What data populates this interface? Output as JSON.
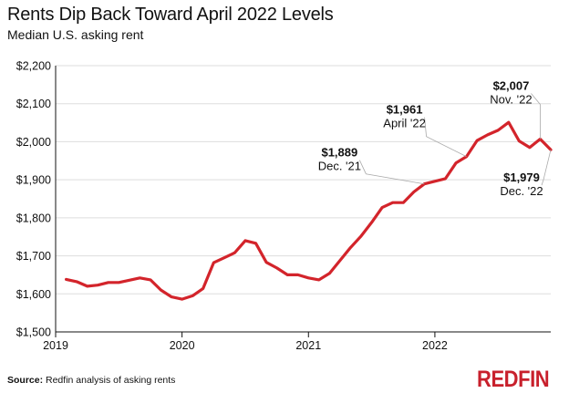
{
  "chart_data": {
    "type": "line",
    "title": "Rents Dip Back Toward April 2022 Levels",
    "subtitle": "Median U.S. asking rent",
    "xlabel": "",
    "ylabel": "",
    "ylim": [
      1500,
      2200
    ],
    "xlim": [
      "2019-01",
      "2022-12"
    ],
    "y_ticks": [
      "$1,500",
      "$1,600",
      "$1,700",
      "$1,800",
      "$1,900",
      "$2,000",
      "$2,100",
      "$2,200"
    ],
    "y_tick_values": [
      1500,
      1600,
      1700,
      1800,
      1900,
      2000,
      2100,
      2200
    ],
    "x_ticks": [
      "2019",
      "2020",
      "2021",
      "2022"
    ],
    "x_tick_values": [
      "2019-01",
      "2020-01",
      "2021-01",
      "2022-01"
    ],
    "grid": "horizontal",
    "series": [
      {
        "color": "#d3242b",
        "x": [
          "2019-02",
          "2019-03",
          "2019-04",
          "2019-05",
          "2019-06",
          "2019-07",
          "2019-08",
          "2019-09",
          "2019-10",
          "2019-11",
          "2019-12",
          "2020-01",
          "2020-02",
          "2020-03",
          "2020-04",
          "2020-05",
          "2020-06",
          "2020-07",
          "2020-08",
          "2020-09",
          "2020-10",
          "2020-11",
          "2020-12",
          "2021-01",
          "2021-02",
          "2021-03",
          "2021-04",
          "2021-05",
          "2021-06",
          "2021-07",
          "2021-08",
          "2021-09",
          "2021-10",
          "2021-11",
          "2021-12",
          "2022-01",
          "2022-02",
          "2022-03",
          "2022-04",
          "2022-05",
          "2022-06",
          "2022-07",
          "2022-08",
          "2022-09",
          "2022-10",
          "2022-11",
          "2022-12"
        ],
        "values": [
          1638,
          1632,
          1620,
          1623,
          1630,
          1630,
          1636,
          1642,
          1637,
          1610,
          1592,
          1586,
          1595,
          1614,
          1682,
          1695,
          1708,
          1740,
          1733,
          1683,
          1668,
          1650,
          1650,
          1642,
          1637,
          1654,
          1688,
          1722,
          1752,
          1788,
          1827,
          1840,
          1840,
          1868,
          1889,
          1896,
          1903,
          1944,
          1961,
          2003,
          2018,
          2030,
          2051,
          2002,
          1985,
          2007,
          1979
        ]
      }
    ],
    "annotations": [
      {
        "value": "$2,007",
        "label": "Nov. '22",
        "x": "2022-11",
        "y": 2007
      },
      {
        "value": "$1,961",
        "label": "April '22",
        "x": "2022-04",
        "y": 1961
      },
      {
        "value": "$1,889",
        "label": "Dec. '21",
        "x": "2021-12",
        "y": 1889
      },
      {
        "value": "$1,979",
        "label": "Dec. '22",
        "x": "2022-12",
        "y": 1979
      }
    ],
    "colors": {
      "line": "#d3242b",
      "axis": "#111111",
      "grid": "#dddddd",
      "leader": "#aaaaaa"
    }
  },
  "footer": {
    "source_label": "Source:",
    "source_text": " Redfin analysis of asking rents",
    "logo": "REDFIN",
    "logo_color": "#c8202c"
  }
}
